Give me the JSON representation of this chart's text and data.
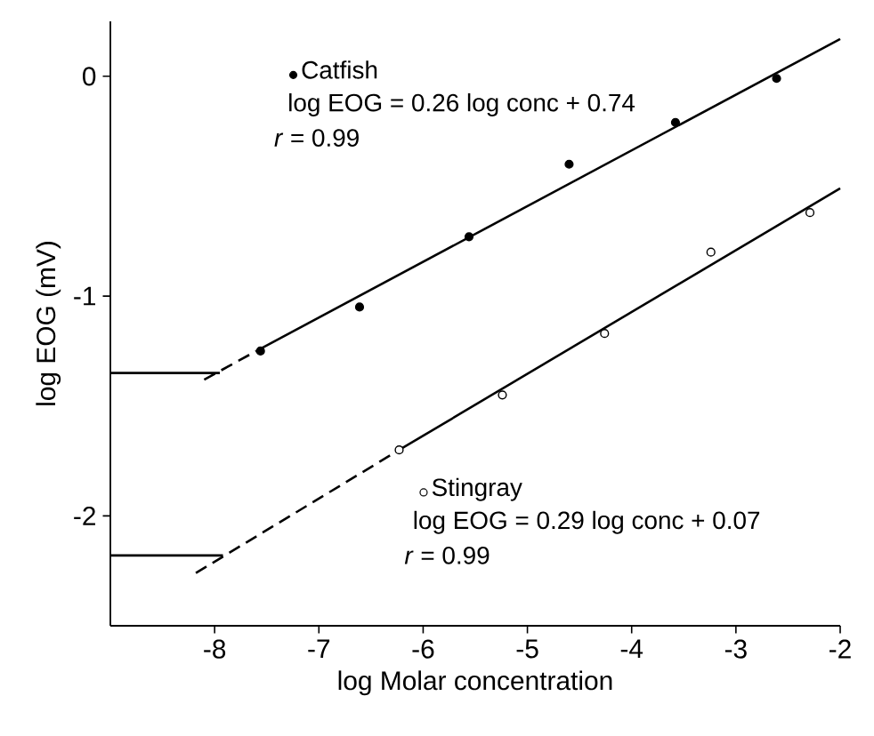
{
  "chart_data": {
    "type": "line",
    "xlabel": "log Molar concentration",
    "ylabel": "log EOG (mV)",
    "xlim": [
      -9,
      -2
    ],
    "ylim": [
      -2.5,
      0.25
    ],
    "xticks": [
      -8,
      -7,
      -6,
      -5,
      -4,
      -3,
      -2
    ],
    "yticks": [
      -2,
      -1,
      0
    ],
    "grid": false,
    "legend": "top left",
    "annotations": [
      "log EOG = 0.26 log conc + 0.74",
      "*r* = 0.99",
      "log EOG = 0.29 log conc + 0.07",
      "*r* = 0.99"
    ],
    "series": [
      {
        "name": "Catfish",
        "type": "scatter",
        "marker": "circle",
        "color": "#000000",
        "x": [
          -7.56,
          -6.61,
          -5.56,
          -4.6,
          -3.58,
          -2.61
        ],
        "values": [
          -1.25,
          -1.05,
          -0.73,
          -0.4,
          -0.21,
          -0.01
        ]
      },
      {
        "name": "Stingray",
        "type": "scatter",
        "marker": "circle",
        "color": "#ffffff",
        "x": [
          -6.23,
          -5.24,
          -4.26,
          -3.24,
          -2.29
        ],
        "values": [
          -1.7,
          -1.45,
          -1.17,
          -0.8,
          -0.62
        ]
      },
      {
        "line_style": "solid",
        "color": "#000000",
        "x": [
          -7.6,
          -2
        ],
        "values": [
          -1.25,
          0.17
        ]
      },
      {
        "line_style": "dashed",
        "color": "#000000",
        "x": [
          -8.1,
          -7.6
        ],
        "values": [
          -1.38,
          -1.25
        ]
      },
      {
        "line_style": "solid",
        "color": "#000000",
        "x": [
          -9,
          -7.95
        ],
        "values": [
          -1.35,
          -1.35
        ]
      },
      {
        "line_style": "solid",
        "color": "#000000",
        "x": [
          -6.23,
          -2
        ],
        "values": [
          -1.7,
          -0.51
        ]
      },
      {
        "line_style": "dashed",
        "color": "#000000",
        "x": [
          -8.18,
          -6.23
        ],
        "values": [
          -2.26,
          -1.7
        ]
      },
      {
        "line_style": "solid",
        "color": "#000000",
        "x": [
          -9,
          -7.92
        ],
        "values": [
          -2.18,
          -2.18
        ]
      }
    ]
  }
}
